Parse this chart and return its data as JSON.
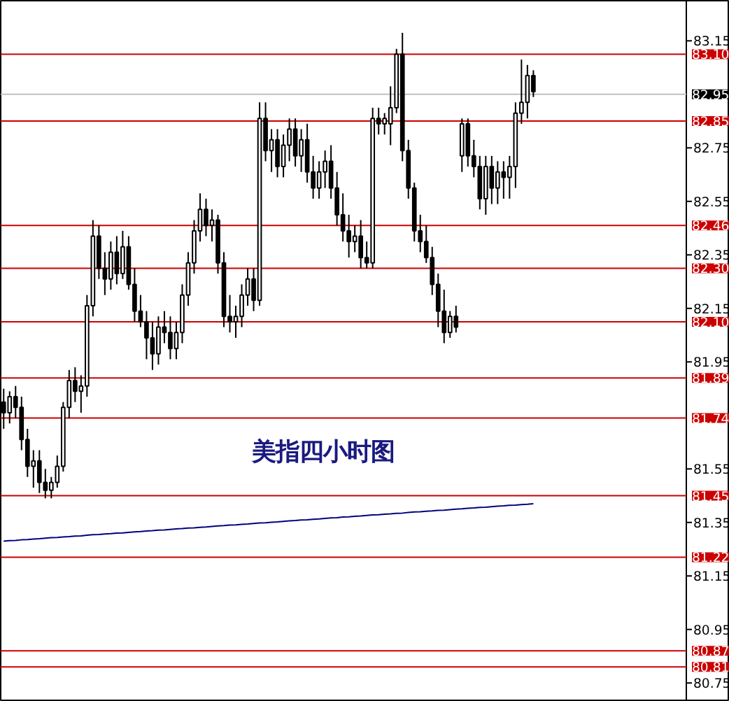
{
  "chart_data": {
    "type": "candlestick",
    "annotations": [
      "美指四小时图"
    ],
    "categories": [
      null,
      null,
      null,
      null,
      null,
      null,
      null,
      null,
      null,
      null,
      null,
      null,
      null,
      null,
      null,
      null,
      null,
      null,
      null,
      null,
      null,
      null,
      null,
      null,
      null,
      null,
      null,
      null,
      null,
      null,
      null,
      null,
      null,
      null,
      null,
      null,
      null,
      null,
      null,
      null,
      null,
      null,
      null,
      null,
      null,
      null,
      null,
      null,
      null,
      null,
      null,
      null,
      null,
      null,
      null,
      null,
      null,
      null,
      null,
      null,
      null,
      null,
      null,
      null,
      null,
      null,
      null,
      null,
      null,
      null,
      null,
      null,
      null,
      null,
      null,
      null,
      null,
      null,
      null,
      null,
      null,
      null,
      null,
      null,
      null,
      null,
      null,
      null,
      null,
      null
    ],
    "ohlc": [
      [
        81.8,
        81.85,
        81.7,
        81.76
      ],
      [
        81.76,
        81.84,
        81.72,
        81.82
      ],
      [
        81.82,
        81.86,
        81.74,
        81.78
      ],
      [
        81.78,
        81.82,
        81.62,
        81.66
      ],
      [
        81.66,
        81.7,
        81.52,
        81.56
      ],
      [
        81.56,
        81.62,
        81.48,
        81.58
      ],
      [
        81.58,
        81.62,
        81.46,
        81.5
      ],
      [
        81.5,
        81.55,
        81.44,
        81.47
      ],
      [
        81.47,
        81.52,
        81.44,
        81.5
      ],
      [
        81.5,
        81.6,
        81.48,
        81.56
      ],
      [
        81.56,
        81.8,
        81.54,
        81.78
      ],
      [
        81.78,
        81.92,
        81.74,
        81.88
      ],
      [
        81.88,
        81.93,
        81.8,
        81.84
      ],
      [
        81.84,
        81.9,
        81.76,
        81.86
      ],
      [
        81.86,
        82.2,
        81.82,
        82.16
      ],
      [
        82.16,
        82.48,
        82.12,
        82.42
      ],
      [
        82.42,
        82.46,
        82.26,
        82.3
      ],
      [
        82.3,
        82.36,
        82.2,
        82.26
      ],
      [
        82.26,
        82.4,
        82.22,
        82.36
      ],
      [
        82.36,
        82.42,
        82.24,
        82.28
      ],
      [
        82.28,
        82.44,
        82.26,
        82.38
      ],
      [
        82.38,
        82.42,
        82.22,
        82.24
      ],
      [
        82.24,
        82.3,
        82.1,
        82.14
      ],
      [
        82.14,
        82.2,
        82.08,
        82.1
      ],
      [
        82.1,
        82.14,
        81.96,
        82.04
      ],
      [
        82.04,
        82.1,
        81.92,
        81.98
      ],
      [
        81.98,
        82.12,
        81.94,
        82.08
      ],
      [
        82.08,
        82.14,
        82.02,
        82.06
      ],
      [
        82.06,
        82.12,
        81.96,
        82.0
      ],
      [
        82.0,
        82.1,
        81.96,
        82.06
      ],
      [
        82.06,
        82.24,
        82.02,
        82.2
      ],
      [
        82.2,
        82.36,
        82.16,
        82.32
      ],
      [
        82.32,
        82.48,
        82.28,
        82.44
      ],
      [
        82.44,
        82.58,
        82.4,
        82.52
      ],
      [
        82.52,
        82.56,
        82.42,
        82.46
      ],
      [
        82.46,
        82.52,
        82.4,
        82.48
      ],
      [
        82.48,
        82.5,
        82.28,
        82.32
      ],
      [
        82.32,
        82.36,
        82.08,
        82.12
      ],
      [
        82.12,
        82.2,
        82.06,
        82.1
      ],
      [
        82.1,
        82.16,
        82.04,
        82.12
      ],
      [
        82.12,
        82.24,
        82.08,
        82.2
      ],
      [
        82.2,
        82.3,
        82.16,
        82.26
      ],
      [
        82.26,
        82.3,
        82.14,
        82.18
      ],
      [
        82.18,
        82.92,
        82.16,
        82.86
      ],
      [
        82.86,
        82.92,
        82.7,
        82.74
      ],
      [
        82.74,
        82.82,
        82.66,
        82.78
      ],
      [
        82.78,
        82.82,
        82.64,
        82.68
      ],
      [
        82.68,
        82.8,
        82.64,
        82.76
      ],
      [
        82.76,
        82.86,
        82.7,
        82.82
      ],
      [
        82.82,
        82.86,
        82.68,
        82.72
      ],
      [
        82.72,
        82.82,
        82.66,
        82.78
      ],
      [
        82.78,
        82.84,
        82.62,
        82.66
      ],
      [
        82.66,
        82.72,
        82.56,
        82.6
      ],
      [
        82.6,
        82.7,
        82.56,
        82.66
      ],
      [
        82.66,
        82.74,
        82.6,
        82.7
      ],
      [
        82.7,
        82.76,
        82.56,
        82.6
      ],
      [
        82.6,
        82.66,
        82.46,
        82.5
      ],
      [
        82.5,
        82.58,
        82.4,
        82.44
      ],
      [
        82.44,
        82.5,
        82.34,
        82.4
      ],
      [
        82.4,
        82.46,
        82.36,
        82.42
      ],
      [
        82.42,
        82.48,
        82.3,
        82.34
      ],
      [
        82.34,
        82.4,
        82.3,
        82.32
      ],
      [
        82.32,
        82.9,
        82.3,
        82.86
      ],
      [
        82.86,
        82.9,
        82.8,
        82.84
      ],
      [
        82.84,
        82.88,
        82.8,
        82.86
      ],
      [
        82.84,
        82.98,
        82.76,
        82.9
      ],
      [
        82.9,
        83.12,
        82.88,
        83.1
      ],
      [
        83.1,
        83.18,
        82.7,
        82.74
      ],
      [
        82.74,
        82.78,
        82.56,
        82.6
      ],
      [
        82.6,
        82.62,
        82.4,
        82.44
      ],
      [
        82.44,
        82.5,
        82.36,
        82.4
      ],
      [
        82.4,
        82.46,
        82.32,
        82.34
      ],
      [
        82.34,
        82.38,
        82.2,
        82.24
      ],
      [
        82.24,
        82.28,
        82.08,
        82.14
      ],
      [
        82.14,
        82.22,
        82.02,
        82.06
      ],
      [
        82.06,
        82.14,
        82.04,
        82.12
      ],
      [
        82.12,
        82.16,
        82.06,
        82.08
      ],
      [
        82.72,
        82.86,
        82.66,
        82.84
      ],
      [
        82.84,
        82.86,
        82.68,
        82.72
      ],
      [
        82.72,
        82.78,
        82.64,
        82.68
      ],
      [
        82.68,
        82.72,
        82.52,
        82.56
      ],
      [
        82.56,
        82.72,
        82.5,
        82.68
      ],
      [
        82.68,
        82.72,
        82.54,
        82.6
      ],
      [
        82.6,
        82.7,
        82.54,
        82.66
      ],
      [
        82.66,
        82.7,
        82.56,
        82.64
      ],
      [
        82.64,
        82.72,
        82.56,
        82.68
      ],
      [
        82.68,
        82.92,
        82.6,
        82.88
      ],
      [
        82.88,
        83.08,
        82.84,
        82.92
      ],
      [
        82.92,
        83.06,
        82.86,
        83.02
      ],
      [
        83.02,
        83.04,
        82.94,
        82.96
      ]
    ],
    "series": [
      {
        "type": "line",
        "color": "#000080",
        "values": [
          81.28,
          81.282,
          81.283,
          81.285,
          81.286,
          81.288,
          81.289,
          81.291,
          81.293,
          81.294,
          81.296,
          81.297,
          81.299,
          81.3,
          81.302,
          81.304,
          81.305,
          81.307,
          81.308,
          81.31,
          81.311,
          81.313,
          81.315,
          81.316,
          81.318,
          81.319,
          81.321,
          81.322,
          81.324,
          81.326,
          81.327,
          81.329,
          81.33,
          81.332,
          81.333,
          81.335,
          81.337,
          81.338,
          81.34,
          81.341,
          81.343,
          81.344,
          81.346,
          81.348,
          81.349,
          81.351,
          81.352,
          81.354,
          81.356,
          81.357,
          81.359,
          81.36,
          81.362,
          81.363,
          81.365,
          81.367,
          81.368,
          81.37,
          81.371,
          81.373,
          81.374,
          81.376,
          81.378,
          81.379,
          81.381,
          81.382,
          81.384,
          81.385,
          81.387,
          81.389,
          81.39,
          81.392,
          81.393,
          81.395,
          81.396,
          81.398,
          81.4,
          81.401,
          81.403,
          81.404,
          81.406,
          81.407,
          81.409,
          81.411,
          81.412,
          81.414,
          81.415,
          81.417,
          81.418,
          81.42
        ]
      }
    ],
    "ylim": [
      80.68,
      83.3
    ],
    "yticks": [
      83.15,
      82.75,
      82.55,
      82.35,
      82.15,
      81.95,
      81.55,
      81.35,
      81.15,
      80.95,
      80.75
    ],
    "tick_labels": "y",
    "grid": false,
    "ref_lines": [
      {
        "axis": "y",
        "value": 83.1,
        "label": "83.10",
        "color": "#cc0000"
      },
      {
        "axis": "y",
        "value": 82.95,
        "label": "82.95",
        "color": "#c0c0c0"
      },
      {
        "axis": "y",
        "value": 82.85,
        "label": "82.85",
        "color": "#cc0000"
      },
      {
        "axis": "y",
        "value": 82.46,
        "label": "82.46",
        "color": "#cc0000"
      },
      {
        "axis": "y",
        "value": 82.3,
        "label": "82.30",
        "color": "#cc0000"
      },
      {
        "axis": "y",
        "value": 82.1,
        "label": "82.10",
        "color": "#cc0000"
      },
      {
        "axis": "y",
        "value": 81.89,
        "label": "81.89",
        "color": "#cc0000"
      },
      {
        "axis": "y",
        "value": 81.74,
        "label": "81.74",
        "color": "#cc0000"
      },
      {
        "axis": "y",
        "value": 81.45,
        "label": "81.45",
        "color": "#cc0000"
      },
      {
        "axis": "y",
        "value": 81.22,
        "label": "81.22",
        "color": "#cc0000"
      },
      {
        "axis": "y",
        "value": 80.87,
        "label": "80.87",
        "color": "#cc0000"
      },
      {
        "axis": "y",
        "value": 80.81,
        "label": "80.81",
        "color": "#cc0000"
      }
    ]
  }
}
